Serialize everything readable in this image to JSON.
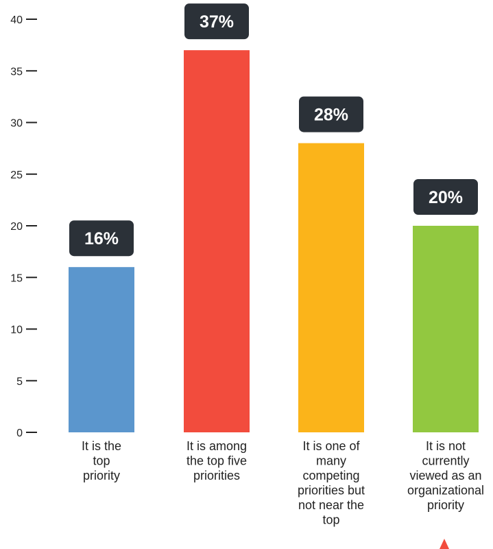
{
  "chart_data": {
    "type": "bar",
    "title": "",
    "xlabel": "",
    "ylabel": "",
    "ylim": [
      0,
      40
    ],
    "yticks": [
      0,
      5,
      10,
      15,
      20,
      25,
      30,
      35,
      40
    ],
    "grid": false,
    "legend": "none",
    "categories": [
      "It is the top priority",
      "It is among the top five priorities",
      "It is one of many competing priorities but not near the top",
      "It is not currently viewed as an organizational priority"
    ],
    "category_lines": [
      [
        "It is the",
        "top",
        "priority"
      ],
      [
        "It is among",
        "the top five",
        "priorities"
      ],
      [
        "It is one of",
        "many",
        "competing",
        "priorities but",
        "not near the",
        "top"
      ],
      [
        "It is not",
        "currently",
        "viewed as an",
        "organizational",
        "priority"
      ]
    ],
    "values": [
      16,
      37,
      28,
      20
    ],
    "data_labels": [
      "16%",
      "37%",
      "28%",
      "20%"
    ],
    "colors": [
      "#5b96cd",
      "#f24c3d",
      "#fbb41a",
      "#92c840"
    ],
    "label_badge_color": "#2b3138"
  },
  "colors": {
    "accent_marker": "#f24c3d",
    "axis": "#222222"
  }
}
